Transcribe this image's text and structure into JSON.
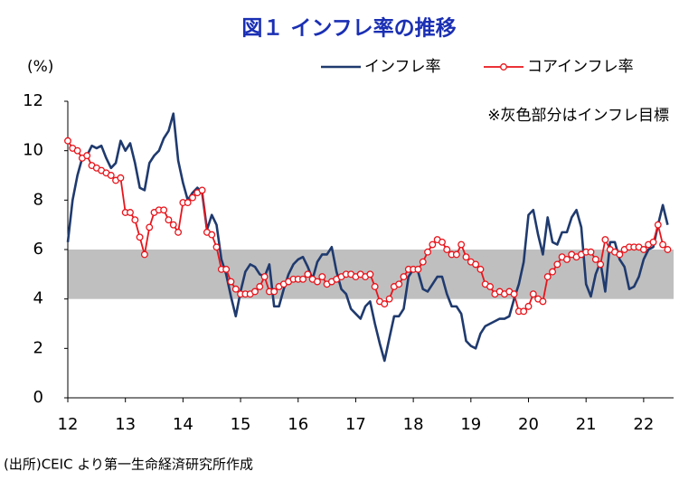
{
  "chart_data": {
    "type": "line",
    "title": "図１ インフレ率の推移",
    "y_label": "(%)",
    "annotation": "※灰色部分はインフレ目標",
    "source": "(出所)CEIC より第一生命経済研究所作成",
    "legend": "top-right",
    "target_band": [
      4,
      6
    ],
    "band_color": "#bfbfbf",
    "xlim": [
      12,
      22.52
    ],
    "xticks": [
      12,
      13,
      14,
      15,
      16,
      17,
      18,
      19,
      20,
      21,
      22
    ],
    "ylim": [
      0,
      12
    ],
    "yticks": [
      0,
      2,
      4,
      6,
      8,
      10,
      12
    ],
    "x": [
      12,
      12.083,
      12.167,
      12.25,
      12.333,
      12.417,
      12.5,
      12.583,
      12.667,
      12.75,
      12.833,
      12.917,
      13,
      13.083,
      13.167,
      13.25,
      13.333,
      13.417,
      13.5,
      13.583,
      13.667,
      13.75,
      13.833,
      13.917,
      14,
      14.083,
      14.167,
      14.25,
      14.333,
      14.417,
      14.5,
      14.583,
      14.667,
      14.75,
      14.833,
      14.917,
      15,
      15.083,
      15.167,
      15.25,
      15.333,
      15.417,
      15.5,
      15.583,
      15.667,
      15.75,
      15.833,
      15.917,
      16,
      16.083,
      16.167,
      16.25,
      16.333,
      16.417,
      16.5,
      16.583,
      16.667,
      16.75,
      16.833,
      16.917,
      17,
      17.083,
      17.167,
      17.25,
      17.333,
      17.417,
      17.5,
      17.583,
      17.667,
      17.75,
      17.833,
      17.917,
      18,
      18.083,
      18.167,
      18.25,
      18.333,
      18.417,
      18.5,
      18.583,
      18.667,
      18.75,
      18.833,
      18.917,
      19,
      19.083,
      19.167,
      19.25,
      19.333,
      19.417,
      19.5,
      19.583,
      19.667,
      19.75,
      19.833,
      19.917,
      20,
      20.083,
      20.167,
      20.25,
      20.333,
      20.417,
      20.5,
      20.583,
      20.667,
      20.75,
      20.833,
      20.917,
      21,
      21.083,
      21.167,
      21.25,
      21.333,
      21.417,
      21.5,
      21.583,
      21.667,
      21.75,
      21.833,
      21.917,
      22,
      22.083,
      22.167,
      22.25,
      22.333,
      22.417
    ],
    "series": [
      {
        "name": "インフレ率",
        "color": "#1f3a6e",
        "marker": false,
        "values": [
          6.3,
          8.0,
          9.0,
          9.7,
          9.8,
          10.2,
          10.1,
          10.2,
          9.7,
          9.3,
          9.5,
          10.4,
          10.0,
          10.3,
          9.5,
          8.5,
          8.4,
          9.5,
          9.8,
          10.0,
          10.5,
          10.8,
          11.5,
          9.6,
          8.7,
          8.0,
          8.3,
          8.5,
          8.3,
          6.8,
          7.4,
          7.0,
          5.6,
          5.0,
          4.1,
          3.3,
          4.3,
          5.1,
          5.4,
          5.3,
          5.0,
          4.9,
          5.4,
          3.7,
          3.7,
          4.4,
          5.0,
          5.4,
          5.6,
          5.7,
          5.3,
          4.8,
          5.5,
          5.8,
          5.8,
          6.1,
          5.1,
          4.4,
          4.2,
          3.6,
          3.4,
          3.2,
          3.7,
          3.9,
          3.0,
          2.2,
          1.5,
          2.4,
          3.3,
          3.3,
          3.6,
          4.9,
          5.2,
          5.1,
          4.4,
          4.3,
          4.6,
          4.9,
          4.9,
          4.2,
          3.7,
          3.7,
          3.4,
          2.3,
          2.1,
          2.0,
          2.6,
          2.9,
          3.0,
          3.1,
          3.2,
          3.2,
          3.3,
          4.0,
          4.6,
          5.5,
          7.4,
          7.6,
          6.6,
          5.8,
          7.3,
          6.3,
          6.2,
          6.7,
          6.7,
          7.3,
          7.6,
          6.9,
          4.6,
          4.1,
          5.0,
          5.5,
          4.3,
          6.3,
          6.3,
          5.6,
          5.3,
          4.4,
          4.5,
          4.9,
          5.6,
          6.0,
          6.1,
          7.0,
          7.8,
          7.0
        ]
      },
      {
        "name": "コアインフレ率",
        "color": "#e8141b",
        "marker": true,
        "values": [
          10.4,
          10.1,
          10.0,
          9.7,
          9.8,
          9.4,
          9.3,
          9.2,
          9.1,
          9.0,
          8.8,
          8.9,
          7.5,
          7.5,
          7.2,
          6.5,
          5.8,
          6.9,
          7.5,
          7.6,
          7.6,
          7.2,
          7.0,
          6.7,
          7.9,
          7.9,
          8.1,
          8.3,
          8.4,
          6.7,
          6.6,
          6.1,
          5.2,
          5.2,
          4.7,
          4.4,
          4.2,
          4.2,
          4.2,
          4.3,
          4.5,
          4.9,
          4.3,
          4.3,
          4.5,
          4.6,
          4.7,
          4.8,
          4.8,
          4.8,
          5.0,
          4.8,
          4.7,
          4.9,
          4.6,
          4.7,
          4.8,
          4.9,
          5.0,
          5.0,
          4.9,
          5.0,
          4.9,
          5.0,
          4.5,
          3.9,
          3.8,
          4.0,
          4.5,
          4.6,
          4.9,
          5.2,
          5.2,
          5.2,
          5.5,
          5.9,
          6.2,
          6.4,
          6.3,
          6.0,
          5.8,
          5.8,
          6.2,
          5.7,
          5.5,
          5.4,
          5.2,
          4.6,
          4.5,
          4.2,
          4.3,
          4.2,
          4.3,
          4.2,
          3.5,
          3.5,
          3.7,
          4.2,
          4.0,
          3.9,
          4.9,
          5.1,
          5.4,
          5.7,
          5.6,
          5.8,
          5.7,
          5.8,
          5.9,
          5.9,
          5.6,
          5.4,
          6.4,
          6.0,
          5.9,
          5.8,
          6.0,
          6.1,
          6.1,
          6.1,
          6.0,
          6.2,
          6.3,
          7.0,
          6.2,
          6.0
        ]
      }
    ]
  }
}
